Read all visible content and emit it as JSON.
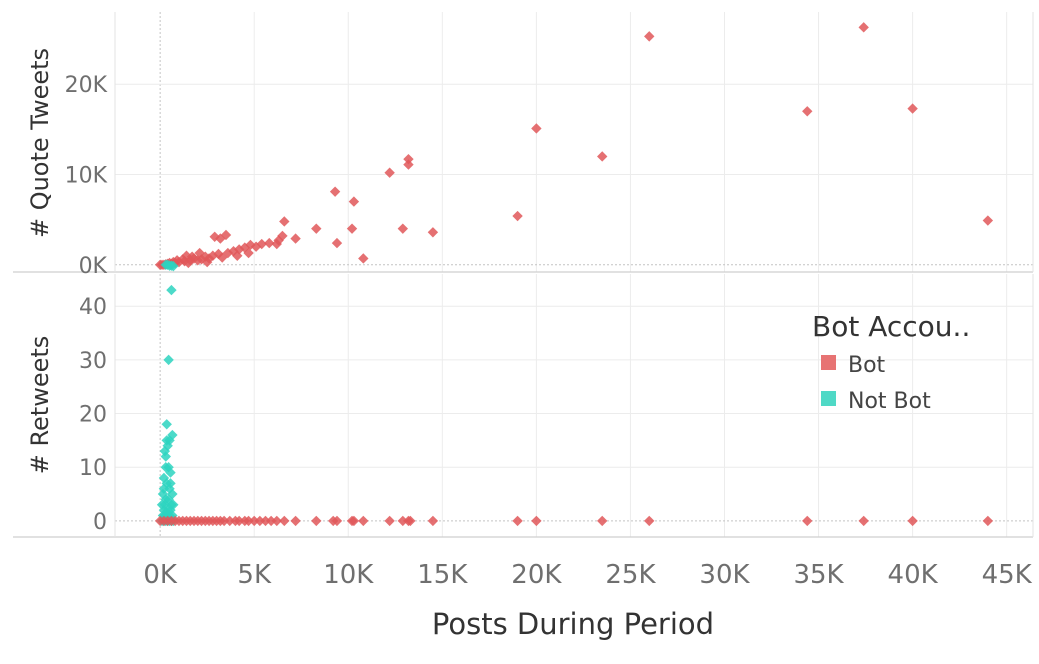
{
  "chart_data": {
    "type": "scatter",
    "xlabel": "Posts During Period",
    "x_ticks": [
      0,
      5000,
      10000,
      15000,
      20000,
      25000,
      30000,
      35000,
      40000,
      45000
    ],
    "x_tick_labels": [
      "0K",
      "5K",
      "10K",
      "15K",
      "20K",
      "25K",
      "30K",
      "35K",
      "40K",
      "45K"
    ],
    "xlim": [
      -2400,
      46400
    ],
    "grid": true,
    "legend": {
      "title": "Bot Accou..",
      "position": "right",
      "entries": [
        {
          "label": "Bot",
          "color": "#e15759"
        },
        {
          "label": "Not Bot",
          "color": "#2dd4bf"
        }
      ]
    },
    "panels": [
      {
        "id": "quote-tweets",
        "ylabel": "# Quote Tweets",
        "ylim": [
          -800,
          28000
        ],
        "y_ticks": [
          0,
          10000,
          20000
        ],
        "y_tick_labels": [
          "0K",
          "10K",
          "20K"
        ],
        "series": [
          {
            "name": "Bot",
            "color": "#e15759",
            "points": [
              [
                26000,
                25300
              ],
              [
                37400,
                26300
              ],
              [
                20000,
                15100
              ],
              [
                23500,
                12000
              ],
              [
                34400,
                17000
              ],
              [
                40000,
                17300
              ],
              [
                44000,
                4900
              ],
              [
                13200,
                11700
              ],
              [
                13200,
                11100
              ],
              [
                12200,
                10200
              ],
              [
                9300,
                8100
              ],
              [
                10300,
                7000
              ],
              [
                10200,
                4000
              ],
              [
                12900,
                4000
              ],
              [
                14500,
                3600
              ],
              [
                19000,
                5400
              ],
              [
                10800,
                700
              ],
              [
                9400,
                2400
              ],
              [
                8300,
                4000
              ],
              [
                6600,
                4800
              ],
              [
                6500,
                3200
              ],
              [
                7200,
                2900
              ],
              [
                5800,
                2400
              ],
              [
                6200,
                2300
              ],
              [
                6300,
                2700
              ],
              [
                5400,
                2300
              ],
              [
                5100,
                2000
              ],
              [
                4800,
                2200
              ],
              [
                4500,
                1900
              ],
              [
                4200,
                1700
              ],
              [
                3900,
                1500
              ],
              [
                3600,
                1300
              ],
              [
                3500,
                3300
              ],
              [
                3200,
                2900
              ],
              [
                2900,
                3100
              ],
              [
                3100,
                1200
              ],
              [
                2800,
                1000
              ],
              [
                2600,
                700
              ],
              [
                2400,
                900
              ],
              [
                2200,
                600
              ],
              [
                2000,
                500
              ],
              [
                1800,
                700
              ],
              [
                1600,
                500
              ],
              [
                1400,
                1000
              ],
              [
                1300,
                400
              ],
              [
                1200,
                600
              ],
              [
                1000,
                300
              ],
              [
                900,
                500
              ],
              [
                800,
                200
              ],
              [
                700,
                300
              ],
              [
                600,
                100
              ],
              [
                500,
                200
              ],
              [
                400,
                100
              ],
              [
                300,
                50
              ],
              [
                200,
                0
              ],
              [
                100,
                0
              ],
              [
                0,
                0
              ],
              [
                1500,
                200
              ],
              [
                2500,
                300
              ],
              [
                3300,
                800
              ],
              [
                4100,
                1000
              ],
              [
                4700,
                1300
              ],
              [
                2100,
                1300
              ],
              [
                1700,
                900
              ]
            ]
          },
          {
            "name": "Not Bot",
            "color": "#2dd4bf",
            "points": [
              [
                300,
                0
              ],
              [
                400,
                0
              ],
              [
                500,
                -100
              ],
              [
                600,
                -100
              ],
              [
                700,
                -150
              ]
            ]
          }
        ]
      },
      {
        "id": "retweets",
        "ylabel": "# Retweets",
        "ylim": [
          -3,
          46
        ],
        "y_ticks": [
          0,
          10,
          20,
          30,
          40
        ],
        "y_tick_labels": [
          "0",
          "10",
          "20",
          "30",
          "40"
        ],
        "series": [
          {
            "name": "Not Bot",
            "color": "#2dd4bf",
            "points": [
              [
                600,
                43
              ],
              [
                450,
                30
              ],
              [
                350,
                18
              ],
              [
                350,
                15
              ],
              [
                500,
                15
              ],
              [
                650,
                16
              ],
              [
                250,
                13
              ],
              [
                400,
                14
              ],
              [
                300,
                10
              ],
              [
                450,
                10
              ],
              [
                550,
                9
              ],
              [
                200,
                8
              ],
              [
                350,
                7
              ],
              [
                500,
                6
              ],
              [
                650,
                5
              ],
              [
                150,
                5
              ],
              [
                300,
                4
              ],
              [
                450,
                4
              ],
              [
                600,
                3
              ],
              [
                250,
                3
              ],
              [
                400,
                2
              ],
              [
                550,
                2
              ],
              [
                200,
                2
              ],
              [
                350,
                1
              ],
              [
                500,
                1
              ],
              [
                650,
                1
              ],
              [
                100,
                0
              ],
              [
                200,
                0
              ],
              [
                300,
                0
              ],
              [
                400,
                0
              ],
              [
                500,
                0
              ],
              [
                600,
                0
              ],
              [
                700,
                0
              ],
              [
                150,
                1
              ],
              [
                250,
                1
              ],
              [
                700,
                3
              ],
              [
                100,
                3
              ],
              [
                200,
                6
              ],
              [
                550,
                7
              ],
              [
                300,
                12
              ]
            ]
          },
          {
            "name": "Bot",
            "color": "#e15759",
            "points": [
              [
                0,
                0
              ],
              [
                200,
                0
              ],
              [
                400,
                0
              ],
              [
                600,
                0
              ],
              [
                800,
                0
              ],
              [
                1000,
                0
              ],
              [
                1200,
                0
              ],
              [
                1400,
                0
              ],
              [
                1600,
                0
              ],
              [
                1800,
                0
              ],
              [
                2000,
                0
              ],
              [
                2200,
                0
              ],
              [
                2400,
                0
              ],
              [
                2600,
                0
              ],
              [
                2800,
                0
              ],
              [
                3000,
                0
              ],
              [
                3200,
                0
              ],
              [
                3400,
                0
              ],
              [
                3700,
                0
              ],
              [
                4000,
                0
              ],
              [
                4200,
                0
              ],
              [
                4500,
                0
              ],
              [
                4700,
                0
              ],
              [
                5000,
                0
              ],
              [
                5300,
                0
              ],
              [
                5600,
                0
              ],
              [
                5900,
                0
              ],
              [
                6200,
                0
              ],
              [
                6600,
                0
              ],
              [
                7200,
                0
              ],
              [
                8300,
                0
              ],
              [
                9200,
                0
              ],
              [
                9400,
                0
              ],
              [
                10200,
                0
              ],
              [
                10300,
                0
              ],
              [
                10800,
                0
              ],
              [
                12200,
                0
              ],
              [
                12900,
                0
              ],
              [
                13200,
                0
              ],
              [
                13300,
                0
              ],
              [
                14500,
                0
              ],
              [
                19000,
                0
              ],
              [
                20000,
                0
              ],
              [
                23500,
                0
              ],
              [
                26000,
                0
              ],
              [
                34400,
                0
              ],
              [
                37400,
                0
              ],
              [
                40000,
                0
              ],
              [
                44000,
                0
              ]
            ]
          }
        ]
      }
    ]
  }
}
